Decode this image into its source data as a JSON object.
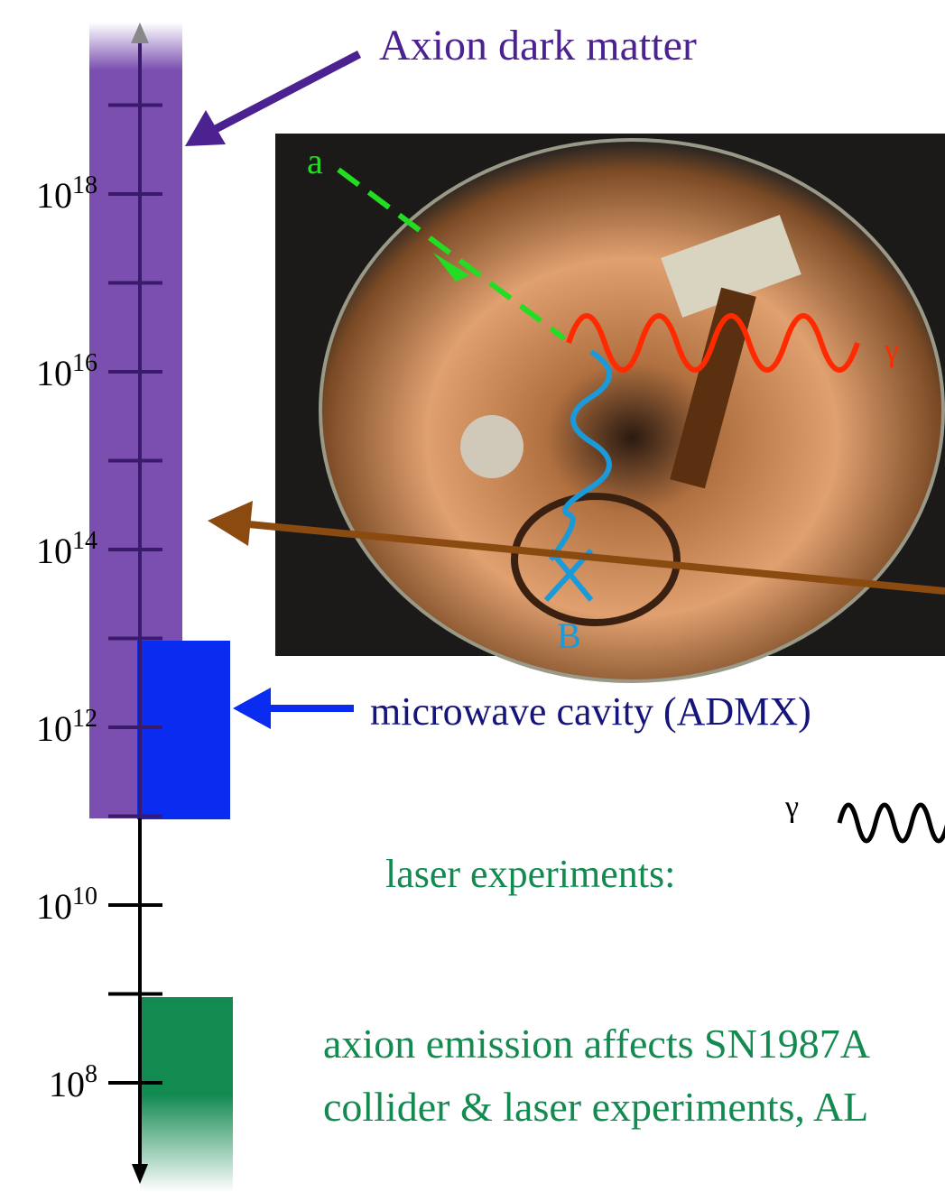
{
  "axis": {
    "ticks": [
      {
        "base": "10",
        "exp": "18"
      },
      {
        "base": "10",
        "exp": "16"
      },
      {
        "base": "10",
        "exp": "14"
      },
      {
        "base": "10",
        "exp": "12"
      },
      {
        "base": "10",
        "exp": "10"
      },
      {
        "base": "10",
        "exp": "8"
      }
    ]
  },
  "labels": {
    "dark_matter": "Axion dark matter",
    "cavity": "microwave cavity (ADMX)",
    "laser": "laser experiments:",
    "supernova": "axion emission affects SN1987A",
    "collider": "collider & laser experiments, AL"
  },
  "photo": {
    "axion": "a",
    "photon": "γ",
    "field": "B"
  },
  "diagram": {
    "photon": "γ"
  }
}
